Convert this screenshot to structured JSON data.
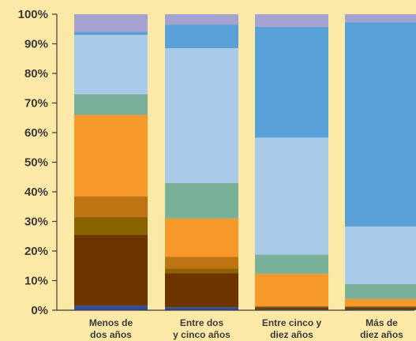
{
  "chart_data": {
    "type": "bar",
    "stacked": true,
    "normalized": true,
    "categories": [
      [
        "Menos de",
        "dos años"
      ],
      [
        "Entre dos",
        "y cinco años"
      ],
      [
        "Entre cinco y",
        "diez años"
      ],
      [
        "Más de",
        "diez años"
      ]
    ],
    "ylim": [
      0,
      100
    ],
    "yticks": [
      "0%",
      "10%",
      "20%",
      "30%",
      "40%",
      "50%",
      "60%",
      "70%",
      "80%",
      "90%",
      "100%"
    ],
    "grid": false,
    "series": [
      {
        "color": "#2e4b9c",
        "values": [
          1.5,
          1.0,
          0.3,
          0.3
        ]
      },
      {
        "color": "#6b3400",
        "values": [
          24.0,
          11.5,
          0.7,
          0.7
        ]
      },
      {
        "color": "#8a6200",
        "values": [
          6.0,
          1.5,
          0.3,
          0.3
        ]
      },
      {
        "color": "#bf7413",
        "values": [
          7.0,
          4.0,
          0.0,
          0.0
        ]
      },
      {
        "color": "#f7982b",
        "values": [
          27.5,
          13.0,
          11.0,
          2.5
        ]
      },
      {
        "color": "#78b09a",
        "values": [
          7.0,
          12.0,
          6.5,
          5.0
        ]
      },
      {
        "color": "#a9cbe9",
        "values": [
          20.0,
          45.5,
          39.5,
          19.5
        ]
      },
      {
        "color": "#599fd8",
        "values": [
          1.0,
          8.0,
          37.5,
          69.0
        ]
      },
      {
        "color": "#a3a2d1",
        "values": [
          6.0,
          3.5,
          4.2,
          2.7
        ]
      }
    ]
  }
}
